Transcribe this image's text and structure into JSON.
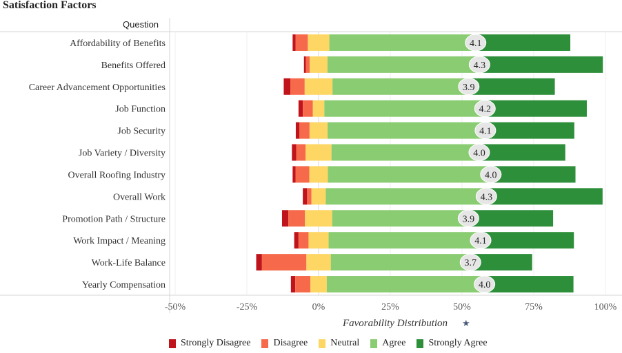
{
  "title": "Satisfaction Factors",
  "column_header": "Question",
  "chart_data": {
    "type": "bar",
    "orientation": "horizontal",
    "stacking": "diverging",
    "title": "Satisfaction Factors",
    "xlabel": "Favorability Distribution",
    "ylabel": "Question",
    "xlim": [
      -52,
      101
    ],
    "xticks": [
      -50,
      -25,
      0,
      25,
      50,
      75,
      100
    ],
    "xtick_labels": [
      "-50%",
      "-25%",
      "0%",
      "25%",
      "50%",
      "75%",
      "100%"
    ],
    "categories": [
      "Affordability of Benefits",
      "Benefits Offered",
      "Career Advancement Opportunities",
      "Job Function",
      "Job Security",
      "Job Variety / Diversity",
      "Overall Roofing Industry",
      "Overall Work",
      "Promotion Path / Structure",
      "Work Impact / Meaning",
      "Work-Life Balance",
      "Yearly Compensation"
    ],
    "series": [
      {
        "name": "Strongly Disagree",
        "color": "#c0141c",
        "values": [
          1.0,
          0.7,
          2.3,
          1.5,
          1.3,
          1.5,
          1.0,
          1.5,
          2.2,
          1.5,
          2.0,
          1.5
        ]
      },
      {
        "name": "Disagree",
        "color": "#f6694b",
        "values": [
          4.3,
          1.3,
          5.0,
          3.5,
          3.5,
          3.3,
          4.8,
          1.5,
          5.8,
          3.5,
          15.5,
          5.3
        ]
      },
      {
        "name": "Neutral",
        "color": "#fdd663",
        "values": [
          7.5,
          6.2,
          9.7,
          4.0,
          6.3,
          9.0,
          6.5,
          5.0,
          9.5,
          7.0,
          8.5,
          5.7
        ]
      },
      {
        "name": "Agree",
        "color": "#8acc72",
        "values": [
          51.0,
          53.0,
          47.5,
          56.0,
          55.0,
          51.5,
          56.8,
          56.0,
          47.5,
          53.0,
          48.7,
          55.0
        ]
      },
      {
        "name": "Strongly Agree",
        "color": "#2d8f3a",
        "values": [
          33.0,
          43.0,
          30.0,
          35.5,
          31.0,
          30.0,
          29.5,
          40.5,
          29.5,
          32.5,
          21.5,
          31.0
        ]
      }
    ],
    "neutral_split": "half left of 0, half right of 0",
    "mean_labels": [
      "4.1",
      "4.3",
      "3.9",
      "4.2",
      "4.1",
      "4.0",
      "4.0",
      "4.3",
      "3.9",
      "4.1",
      "3.7",
      "4.0"
    ],
    "legend_position": "bottom",
    "grid": "vertical"
  }
}
